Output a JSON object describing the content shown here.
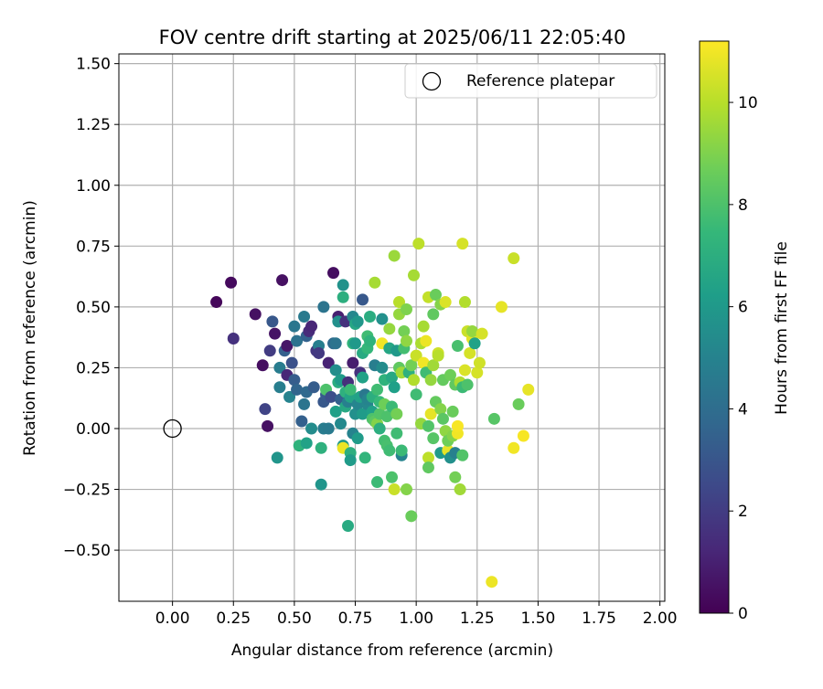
{
  "chart_data": {
    "type": "scatter",
    "title": "FOV centre drift starting at 2025/06/11 22:05:40",
    "xlabel": "Angular distance from reference (arcmin)",
    "ylabel": "Rotation from reference (arcmin)",
    "xlim": [
      -0.22,
      2.02
    ],
    "ylim": [
      -0.71,
      1.54
    ],
    "x_ticks": [
      0.0,
      0.25,
      0.5,
      0.75,
      1.0,
      1.25,
      1.5,
      1.75,
      2.0
    ],
    "x_tick_labels": [
      "0.00",
      "0.25",
      "0.50",
      "0.75",
      "1.00",
      "1.25",
      "1.50",
      "1.75",
      "2.00"
    ],
    "y_ticks": [
      -0.5,
      -0.25,
      0.0,
      0.25,
      0.5,
      0.75,
      1.0,
      1.25,
      1.5
    ],
    "y_tick_labels": [
      "−0.50",
      "−0.25",
      "0.00",
      "0.25",
      "0.50",
      "0.75",
      "1.00",
      "1.25",
      "1.50"
    ],
    "grid": true,
    "legend": {
      "position": "top-right",
      "entries": [
        {
          "label": "Reference platepar",
          "marker": "open-circle"
        }
      ]
    },
    "reference_point": {
      "x": 0.0,
      "y": 0.0
    },
    "colorbar": {
      "label": "Hours from first FF file",
      "colormap": "viridis",
      "range": [
        0,
        11.2
      ],
      "ticks": [
        0,
        2,
        4,
        6,
        8,
        10
      ],
      "tick_labels": [
        "0",
        "2",
        "4",
        "6",
        "8",
        "10"
      ]
    },
    "colors": {
      "viridis_stops": [
        "#440154",
        "#482878",
        "#3e4989",
        "#31688e",
        "#26828e",
        "#1f9e89",
        "#35b779",
        "#6ece58",
        "#b5de2b",
        "#fde725"
      ]
    },
    "points": [
      {
        "x": 0.18,
        "y": 0.52,
        "h": 0.2
      },
      {
        "x": 0.24,
        "y": 0.6,
        "h": 0.3
      },
      {
        "x": 0.25,
        "y": 0.37,
        "h": 1.6
      },
      {
        "x": 0.34,
        "y": 0.47,
        "h": 0.5
      },
      {
        "x": 0.37,
        "y": 0.26,
        "h": 0.4
      },
      {
        "x": 0.38,
        "y": 0.08,
        "h": 2.3
      },
      {
        "x": 0.39,
        "y": 0.01,
        "h": 0.5
      },
      {
        "x": 0.4,
        "y": 0.32,
        "h": 2.0
      },
      {
        "x": 0.41,
        "y": 0.44,
        "h": 3.1
      },
      {
        "x": 0.42,
        "y": 0.39,
        "h": 0.6
      },
      {
        "x": 0.43,
        "y": -0.12,
        "h": 5.8
      },
      {
        "x": 0.44,
        "y": 0.25,
        "h": 4.7
      },
      {
        "x": 0.44,
        "y": 0.17,
        "h": 4.8
      },
      {
        "x": 0.45,
        "y": 0.61,
        "h": 0.5
      },
      {
        "x": 0.46,
        "y": 0.32,
        "h": 3.4
      },
      {
        "x": 0.47,
        "y": 0.22,
        "h": 1.2
      },
      {
        "x": 0.47,
        "y": 0.34,
        "h": 0.7
      },
      {
        "x": 0.48,
        "y": 0.13,
        "h": 5.0
      },
      {
        "x": 0.49,
        "y": 0.27,
        "h": 2.8
      },
      {
        "x": 0.5,
        "y": 0.42,
        "h": 4.4
      },
      {
        "x": 0.5,
        "y": 0.2,
        "h": 3.3
      },
      {
        "x": 0.51,
        "y": 0.36,
        "h": 4.2
      },
      {
        "x": 0.51,
        "y": 0.16,
        "h": 3.6
      },
      {
        "x": 0.52,
        "y": -0.07,
        "h": 7.2
      },
      {
        "x": 0.53,
        "y": 0.03,
        "h": 3.4
      },
      {
        "x": 0.54,
        "y": 0.1,
        "h": 4.3
      },
      {
        "x": 0.54,
        "y": 0.46,
        "h": 4.6
      },
      {
        "x": 0.55,
        "y": -0.06,
        "h": 6.4
      },
      {
        "x": 0.55,
        "y": 0.38,
        "h": 3.5
      },
      {
        "x": 0.55,
        "y": 0.15,
        "h": 3.8
      },
      {
        "x": 0.56,
        "y": 0.4,
        "h": 1.4
      },
      {
        "x": 0.57,
        "y": 0.0,
        "h": 5.4
      },
      {
        "x": 0.57,
        "y": 0.42,
        "h": 1.2
      },
      {
        "x": 0.58,
        "y": 0.17,
        "h": 3.3
      },
      {
        "x": 0.59,
        "y": 0.32,
        "h": 1.8
      },
      {
        "x": 0.6,
        "y": 0.34,
        "h": 4.8
      },
      {
        "x": 0.6,
        "y": 0.31,
        "h": 1.9
      },
      {
        "x": 0.61,
        "y": -0.08,
        "h": 7.1
      },
      {
        "x": 0.61,
        "y": -0.23,
        "h": 5.8
      },
      {
        "x": 0.62,
        "y": 0.11,
        "h": 3.1
      },
      {
        "x": 0.62,
        "y": 0.5,
        "h": 4.3
      },
      {
        "x": 0.62,
        "y": 0.0,
        "h": 4.7
      },
      {
        "x": 0.63,
        "y": 0.14,
        "h": 3.2
      },
      {
        "x": 0.63,
        "y": 0.16,
        "h": 8.0
      },
      {
        "x": 0.64,
        "y": 0.0,
        "h": 4.6
      },
      {
        "x": 0.64,
        "y": 0.27,
        "h": 1.1
      },
      {
        "x": 0.65,
        "y": 0.13,
        "h": 2.7
      },
      {
        "x": 0.66,
        "y": 0.64,
        "h": 0.4
      },
      {
        "x": 0.66,
        "y": 0.35,
        "h": 3.9
      },
      {
        "x": 0.67,
        "y": 0.24,
        "h": 5.5
      },
      {
        "x": 0.67,
        "y": 0.07,
        "h": 6.3
      },
      {
        "x": 0.67,
        "y": 0.35,
        "h": 4.3
      },
      {
        "x": 0.68,
        "y": 0.46,
        "h": 1.0
      },
      {
        "x": 0.68,
        "y": 0.44,
        "h": 5.6
      },
      {
        "x": 0.68,
        "y": 0.19,
        "h": 6.9
      },
      {
        "x": 0.69,
        "y": 0.02,
        "h": 5.3
      },
      {
        "x": 0.69,
        "y": 0.12,
        "h": 3.4
      },
      {
        "x": 0.69,
        "y": 0.2,
        "h": 6.1
      },
      {
        "x": 0.7,
        "y": 0.54,
        "h": 7.0
      },
      {
        "x": 0.7,
        "y": -0.07,
        "h": 6.0
      },
      {
        "x": 0.7,
        "y": -0.08,
        "h": 10.9
      },
      {
        "x": 0.7,
        "y": 0.59,
        "h": 5.7
      },
      {
        "x": 0.71,
        "y": 0.09,
        "h": 6.7
      },
      {
        "x": 0.71,
        "y": 0.15,
        "h": 7.1
      },
      {
        "x": 0.71,
        "y": 0.44,
        "h": 1.6
      },
      {
        "x": 0.72,
        "y": 0.11,
        "h": 4.9
      },
      {
        "x": 0.72,
        "y": -0.4,
        "h": 6.8
      },
      {
        "x": 0.72,
        "y": 0.19,
        "h": 1.5
      },
      {
        "x": 0.73,
        "y": -0.1,
        "h": 7.0
      },
      {
        "x": 0.73,
        "y": 0.13,
        "h": 6.5
      },
      {
        "x": 0.73,
        "y": -0.13,
        "h": 6.1
      },
      {
        "x": 0.73,
        "y": 0.16,
        "h": 7.6
      },
      {
        "x": 0.74,
        "y": 0.27,
        "h": 0.9
      },
      {
        "x": 0.74,
        "y": 0.35,
        "h": 7.3
      },
      {
        "x": 0.74,
        "y": 0.46,
        "h": 5.2
      },
      {
        "x": 0.74,
        "y": -0.02,
        "h": 5.0
      },
      {
        "x": 0.75,
        "y": 0.35,
        "h": 6.0
      },
      {
        "x": 0.75,
        "y": 0.06,
        "h": 5.6
      },
      {
        "x": 0.75,
        "y": 0.43,
        "h": 6.6
      },
      {
        "x": 0.76,
        "y": 0.1,
        "h": 5.1
      },
      {
        "x": 0.76,
        "y": 0.44,
        "h": 5.9
      },
      {
        "x": 0.76,
        "y": -0.04,
        "h": 6.1
      },
      {
        "x": 0.77,
        "y": 0.13,
        "h": 6.4
      },
      {
        "x": 0.77,
        "y": 0.23,
        "h": 1.6
      },
      {
        "x": 0.78,
        "y": 0.53,
        "h": 3.1
      },
      {
        "x": 0.78,
        "y": 0.31,
        "h": 6.8
      },
      {
        "x": 0.78,
        "y": 0.06,
        "h": 6.1
      },
      {
        "x": 0.78,
        "y": 0.21,
        "h": 6.4
      },
      {
        "x": 0.79,
        "y": -0.12,
        "h": 7.3
      },
      {
        "x": 0.79,
        "y": 0.14,
        "h": 4.5
      },
      {
        "x": 0.8,
        "y": 0.1,
        "h": 5.2
      },
      {
        "x": 0.8,
        "y": 0.12,
        "h": 5.0
      },
      {
        "x": 0.8,
        "y": 0.33,
        "h": 7.4
      },
      {
        "x": 0.8,
        "y": 0.38,
        "h": 7.7
      },
      {
        "x": 0.81,
        "y": 0.36,
        "h": 7.2
      },
      {
        "x": 0.81,
        "y": 0.46,
        "h": 6.9
      },
      {
        "x": 0.82,
        "y": 0.07,
        "h": 6.3
      },
      {
        "x": 0.82,
        "y": 0.04,
        "h": 8.0
      },
      {
        "x": 0.82,
        "y": 0.13,
        "h": 7.0
      },
      {
        "x": 0.83,
        "y": 0.26,
        "h": 4.8
      },
      {
        "x": 0.83,
        "y": 0.6,
        "h": 9.7
      },
      {
        "x": 0.83,
        "y": 0.03,
        "h": 8.3
      },
      {
        "x": 0.84,
        "y": 0.16,
        "h": 7.7
      },
      {
        "x": 0.84,
        "y": 0.02,
        "h": 9.1
      },
      {
        "x": 0.84,
        "y": -0.22,
        "h": 7.6
      },
      {
        "x": 0.85,
        "y": 0.06,
        "h": 8.1
      },
      {
        "x": 0.85,
        "y": 0.11,
        "h": 7.5
      },
      {
        "x": 0.85,
        "y": 0.0,
        "h": 7.0
      },
      {
        "x": 0.86,
        "y": 0.45,
        "h": 5.6
      },
      {
        "x": 0.86,
        "y": 0.25,
        "h": 5.4
      },
      {
        "x": 0.86,
        "y": 0.35,
        "h": 11.0
      },
      {
        "x": 0.87,
        "y": 0.2,
        "h": 7.2
      },
      {
        "x": 0.87,
        "y": -0.05,
        "h": 7.8
      },
      {
        "x": 0.87,
        "y": 0.1,
        "h": 8.7
      },
      {
        "x": 0.88,
        "y": 0.05,
        "h": 8.0
      },
      {
        "x": 0.88,
        "y": -0.07,
        "h": 7.9
      },
      {
        "x": 0.89,
        "y": 0.33,
        "h": 6.6
      },
      {
        "x": 0.89,
        "y": -0.09,
        "h": 7.7
      },
      {
        "x": 0.89,
        "y": 0.41,
        "h": 9.4
      },
      {
        "x": 0.9,
        "y": -0.2,
        "h": 8.0
      },
      {
        "x": 0.9,
        "y": 0.21,
        "h": 6.7
      },
      {
        "x": 0.9,
        "y": 0.09,
        "h": 7.6
      },
      {
        "x": 0.91,
        "y": 0.71,
        "h": 9.5
      },
      {
        "x": 0.91,
        "y": -0.25,
        "h": 10.3
      },
      {
        "x": 0.91,
        "y": 0.17,
        "h": 6.3
      },
      {
        "x": 0.92,
        "y": -0.02,
        "h": 7.7
      },
      {
        "x": 0.92,
        "y": 0.06,
        "h": 8.8
      },
      {
        "x": 0.92,
        "y": 0.32,
        "h": 6.0
      },
      {
        "x": 0.93,
        "y": 0.52,
        "h": 10.0
      },
      {
        "x": 0.93,
        "y": 0.25,
        "h": 8.4
      },
      {
        "x": 0.93,
        "y": 0.47,
        "h": 9.4
      },
      {
        "x": 0.94,
        "y": 0.23,
        "h": 9.6
      },
      {
        "x": 0.94,
        "y": -0.11,
        "h": 5.0
      },
      {
        "x": 0.94,
        "y": -0.09,
        "h": 7.6
      },
      {
        "x": 0.95,
        "y": 0.4,
        "h": 8.8
      },
      {
        "x": 0.95,
        "y": 0.33,
        "h": 7.8
      },
      {
        "x": 0.96,
        "y": 0.49,
        "h": 9.0
      },
      {
        "x": 0.96,
        "y": -0.25,
        "h": 9.1
      },
      {
        "x": 0.96,
        "y": 0.36,
        "h": 9.3
      },
      {
        "x": 0.97,
        "y": 0.23,
        "h": 7.1
      },
      {
        "x": 0.98,
        "y": -0.36,
        "h": 8.6
      },
      {
        "x": 0.98,
        "y": 0.26,
        "h": 8.8
      },
      {
        "x": 0.99,
        "y": 0.63,
        "h": 9.7
      },
      {
        "x": 0.99,
        "y": 0.2,
        "h": 9.9
      },
      {
        "x": 1.0,
        "y": 0.3,
        "h": 10.3
      },
      {
        "x": 1.0,
        "y": 0.14,
        "h": 7.7
      },
      {
        "x": 1.01,
        "y": 0.76,
        "h": 10.1
      },
      {
        "x": 1.02,
        "y": 0.35,
        "h": 9.8
      },
      {
        "x": 1.02,
        "y": 0.02,
        "h": 9.4
      },
      {
        "x": 1.03,
        "y": 0.42,
        "h": 9.7
      },
      {
        "x": 1.03,
        "y": 0.27,
        "h": 11.0
      },
      {
        "x": 1.04,
        "y": 0.36,
        "h": 10.9
      },
      {
        "x": 1.04,
        "y": 0.23,
        "h": 7.7
      },
      {
        "x": 1.05,
        "y": 0.54,
        "h": 10.2
      },
      {
        "x": 1.05,
        "y": -0.12,
        "h": 10.1
      },
      {
        "x": 1.05,
        "y": -0.16,
        "h": 8.4
      },
      {
        "x": 1.05,
        "y": 0.01,
        "h": 8.1
      },
      {
        "x": 1.06,
        "y": 0.06,
        "h": 10.8
      },
      {
        "x": 1.06,
        "y": 0.2,
        "h": 9.4
      },
      {
        "x": 1.07,
        "y": 0.47,
        "h": 8.4
      },
      {
        "x": 1.07,
        "y": -0.04,
        "h": 8.2
      },
      {
        "x": 1.07,
        "y": 0.26,
        "h": 9.6
      },
      {
        "x": 1.08,
        "y": 0.55,
        "h": 8.6
      },
      {
        "x": 1.08,
        "y": 0.11,
        "h": 8.5
      },
      {
        "x": 1.09,
        "y": 0.31,
        "h": 10.4
      },
      {
        "x": 1.09,
        "y": 0.3,
        "h": 10.0
      },
      {
        "x": 1.1,
        "y": 0.08,
        "h": 9.1
      },
      {
        "x": 1.1,
        "y": 0.51,
        "h": 9.1
      },
      {
        "x": 1.1,
        "y": -0.1,
        "h": 6.1
      },
      {
        "x": 1.11,
        "y": 0.04,
        "h": 8.3
      },
      {
        "x": 1.11,
        "y": 0.2,
        "h": 8.5
      },
      {
        "x": 1.12,
        "y": 0.52,
        "h": 10.6
      },
      {
        "x": 1.12,
        "y": -0.01,
        "h": 9.3
      },
      {
        "x": 1.13,
        "y": -0.09,
        "h": 10.8
      },
      {
        "x": 1.13,
        "y": -0.05,
        "h": 8.7
      },
      {
        "x": 1.14,
        "y": 0.22,
        "h": 8.7
      },
      {
        "x": 1.14,
        "y": -0.12,
        "h": 5.6
      },
      {
        "x": 1.15,
        "y": 0.07,
        "h": 8.6
      },
      {
        "x": 1.15,
        "y": -0.03,
        "h": 9.1
      },
      {
        "x": 1.16,
        "y": -0.1,
        "h": 4.9
      },
      {
        "x": 1.16,
        "y": 0.18,
        "h": 8.4
      },
      {
        "x": 1.16,
        "y": -0.2,
        "h": 8.8
      },
      {
        "x": 1.17,
        "y": 0.34,
        "h": 7.9
      },
      {
        "x": 1.17,
        "y": -0.02,
        "h": 11.0
      },
      {
        "x": 1.17,
        "y": 0.01,
        "h": 11.1
      },
      {
        "x": 1.18,
        "y": 0.19,
        "h": 9.8
      },
      {
        "x": 1.18,
        "y": -0.25,
        "h": 9.6
      },
      {
        "x": 1.19,
        "y": 0.76,
        "h": 10.5
      },
      {
        "x": 1.19,
        "y": 0.17,
        "h": 7.6
      },
      {
        "x": 1.19,
        "y": -0.11,
        "h": 8.1
      },
      {
        "x": 1.2,
        "y": 0.52,
        "h": 9.9
      },
      {
        "x": 1.2,
        "y": 0.24,
        "h": 10.6
      },
      {
        "x": 1.21,
        "y": 0.4,
        "h": 10.3
      },
      {
        "x": 1.21,
        "y": 0.18,
        "h": 8.0
      },
      {
        "x": 1.22,
        "y": 0.31,
        "h": 10.5
      },
      {
        "x": 1.23,
        "y": 0.37,
        "h": 10.7
      },
      {
        "x": 1.23,
        "y": 0.4,
        "h": 9.4
      },
      {
        "x": 1.24,
        "y": 0.35,
        "h": 6.4
      },
      {
        "x": 1.25,
        "y": 0.23,
        "h": 10.5
      },
      {
        "x": 1.26,
        "y": 0.27,
        "h": 10.4
      },
      {
        "x": 1.27,
        "y": 0.39,
        "h": 10.5
      },
      {
        "x": 1.31,
        "y": -0.63,
        "h": 10.9
      },
      {
        "x": 1.32,
        "y": 0.04,
        "h": 8.2
      },
      {
        "x": 1.35,
        "y": 0.5,
        "h": 10.8
      },
      {
        "x": 1.4,
        "y": 0.7,
        "h": 10.3
      },
      {
        "x": 1.4,
        "y": -0.08,
        "h": 11.0
      },
      {
        "x": 1.42,
        "y": 0.1,
        "h": 8.6
      },
      {
        "x": 1.44,
        "y": -0.03,
        "h": 11.1
      },
      {
        "x": 1.46,
        "y": 0.16,
        "h": 10.8
      }
    ]
  }
}
